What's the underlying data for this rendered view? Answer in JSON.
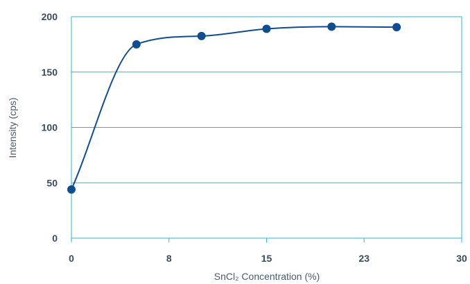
{
  "chart_data": {
    "type": "line",
    "title": "",
    "xlabel": "SnCl₂ Concentration (%)",
    "ylabel": "Intensity (cps)",
    "xlim": [
      0,
      30
    ],
    "ylim": [
      0,
      200
    ],
    "x_ticks": [
      {
        "value": 0,
        "label": "0"
      },
      {
        "value": 7.5,
        "label": "8"
      },
      {
        "value": 15,
        "label": "15"
      },
      {
        "value": 22.5,
        "label": "23"
      },
      {
        "value": 30,
        "label": "30"
      }
    ],
    "y_ticks": [
      0,
      50,
      100,
      150,
      200
    ],
    "grid": "horizontal",
    "smooth": true,
    "series": [
      {
        "color": "#0e4d92",
        "points": [
          {
            "x": 0,
            "y": 44
          },
          {
            "x": 5,
            "y": 175
          },
          {
            "x": 10,
            "y": 182.5
          },
          {
            "x": 15,
            "y": 189
          },
          {
            "x": 20,
            "y": 191
          },
          {
            "x": 25,
            "y": 190.5
          }
        ]
      }
    ],
    "colors": {
      "grid": "#2bb5d6",
      "series": "#0e4d92",
      "text": "#3a4a5a"
    }
  }
}
